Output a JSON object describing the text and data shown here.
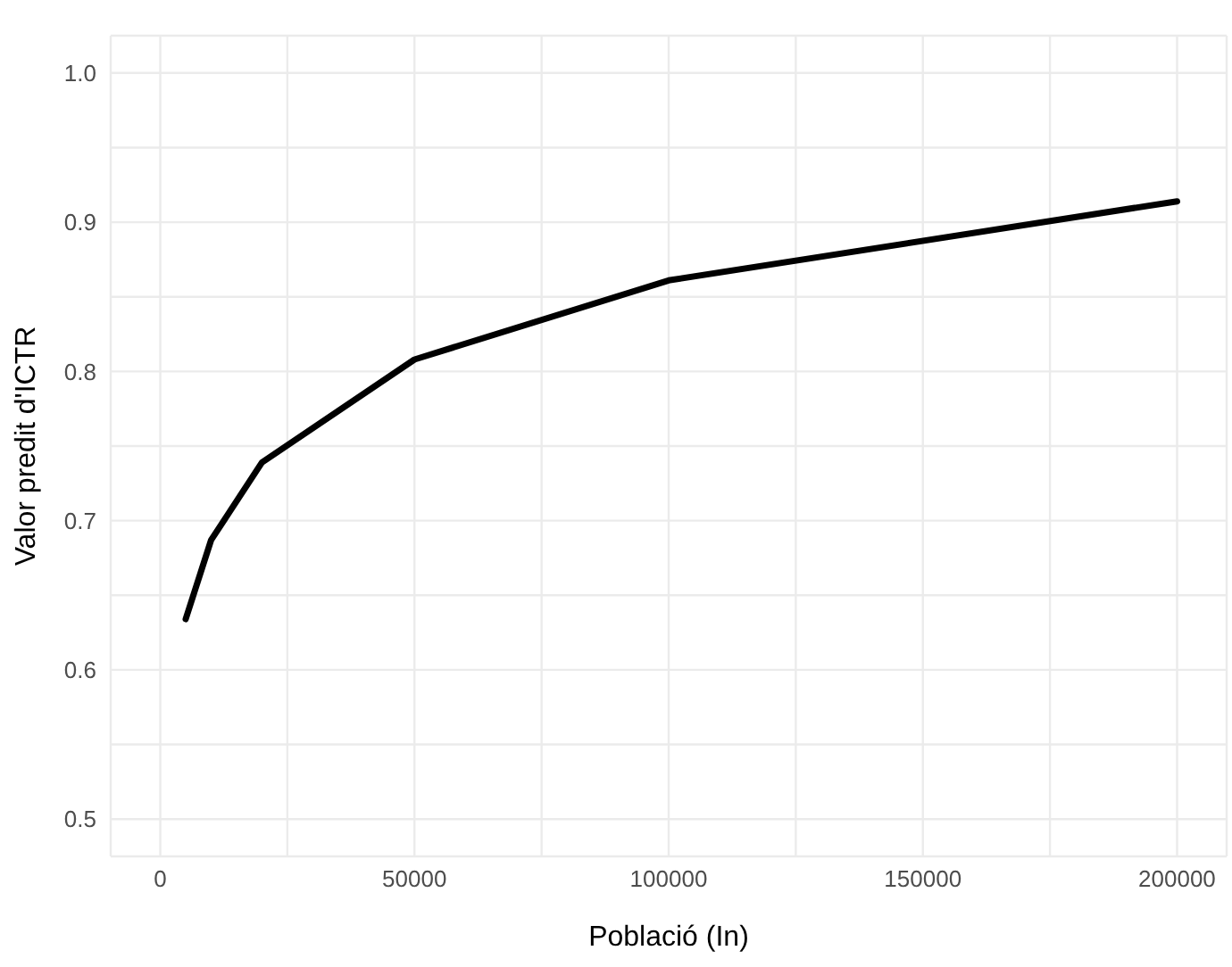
{
  "chart_data": {
    "type": "line",
    "xlabel": "Població (In)",
    "ylabel": "Valor predit d'ICTR",
    "x": [
      5000,
      10000,
      20000,
      50000,
      100000,
      200000
    ],
    "series": [
      {
        "color": "#000000",
        "values": [
          0.634,
          0.687,
          0.739,
          0.808,
          0.861,
          0.914
        ]
      }
    ],
    "xlim": [
      -9750,
      209750
    ],
    "xticks": [
      0,
      {
        "value": 25000,
        "label": null
      },
      50000,
      {
        "value": 75000,
        "label": null
      },
      100000,
      {
        "value": 125000,
        "label": null
      },
      150000,
      {
        "value": 175000,
        "label": null
      },
      200000
    ],
    "ylim": [
      0.475,
      1.025
    ],
    "yticks": [
      {
        "value": 0.5,
        "label": "0.5"
      },
      {
        "value": 0.55,
        "label": null
      },
      {
        "value": 0.6,
        "label": "0.6"
      },
      {
        "value": 0.65,
        "label": null
      },
      {
        "value": 0.7,
        "label": "0.7"
      },
      {
        "value": 0.75,
        "label": null
      },
      {
        "value": 0.8,
        "label": "0.8"
      },
      {
        "value": 0.85,
        "label": null
      },
      {
        "value": 0.9,
        "label": "0.9"
      },
      {
        "value": 0.95,
        "label": null
      },
      {
        "value": 1.0,
        "label": "1.0"
      }
    ],
    "grid": true,
    "legend": false,
    "marker": "none",
    "line_style": "solid"
  }
}
